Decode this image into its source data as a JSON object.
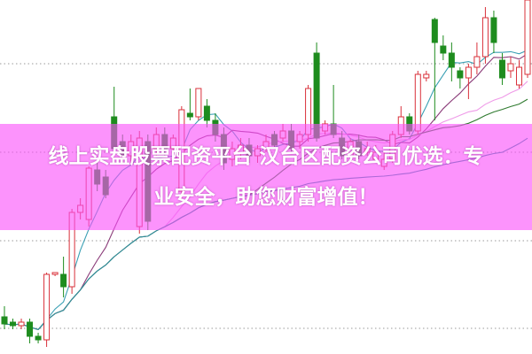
{
  "banner": {
    "line1": "线上实盘股票配资平台 汉台区配资公司优选：专",
    "line2": "业安全，助您财富增值！",
    "color": "#fa50fa"
  },
  "chart_data": {
    "type": "candlestick",
    "title": "",
    "grid": "dotted horizontal",
    "colors": {
      "up": "#d9303a",
      "down": "#1e8c1e",
      "ma": [
        "#3aa0b4",
        "#8a3a78",
        "#ef9be8",
        "#2f7a2f",
        "#2f8f9f"
      ]
    },
    "moving_average_periods": [
      5,
      10,
      20,
      30,
      60
    ],
    "ylim": [
      0,
      100
    ],
    "gridlines": [
      82,
      57,
      32,
      7.25
    ],
    "candles": [
      [
        10.5,
        8.5,
        13.5,
        7
      ],
      [
        9,
        8,
        10,
        7
      ],
      [
        8,
        9,
        10,
        7
      ],
      [
        9,
        5,
        10,
        3
      ],
      [
        5,
        4,
        6,
        3
      ],
      [
        4,
        22.5,
        23,
        2
      ],
      [
        22.5,
        23,
        23,
        22
      ],
      [
        22.5,
        19,
        27.5,
        16
      ],
      [
        19,
        40,
        41,
        17
      ],
      [
        40,
        42,
        44,
        38
      ],
      [
        38,
        52.5,
        53,
        36
      ],
      [
        52,
        48,
        55,
        46
      ],
      [
        50,
        45,
        52,
        44
      ],
      [
        67,
        58,
        75.5,
        56
      ],
      [
        60,
        56,
        62,
        54
      ],
      [
        56,
        60,
        62,
        54
      ],
      [
        36,
        61,
        63,
        34
      ],
      [
        60,
        37.5,
        62,
        35
      ],
      [
        58,
        62,
        64,
        56
      ],
      [
        62,
        58,
        64,
        56
      ],
      [
        58,
        61,
        62,
        55
      ],
      [
        46,
        69,
        70,
        44
      ],
      [
        68,
        67,
        75,
        66
      ],
      [
        67,
        75,
        75,
        66
      ],
      [
        70,
        66,
        72,
        64
      ],
      [
        66,
        62,
        68,
        60
      ],
      [
        62,
        54,
        64,
        52
      ],
      [
        55,
        58,
        60,
        53
      ],
      [
        57,
        59,
        61,
        55
      ],
      [
        59,
        56,
        61,
        54
      ],
      [
        56,
        58,
        59,
        54
      ],
      [
        58,
        60,
        62,
        57
      ],
      [
        62,
        59,
        63,
        58
      ],
      [
        61,
        63,
        65,
        60
      ],
      [
        63,
        58,
        65,
        57
      ],
      [
        60,
        62,
        63,
        58
      ],
      [
        62,
        75,
        76,
        60
      ],
      [
        85,
        61,
        88,
        60
      ],
      [
        63,
        65,
        66,
        62
      ],
      [
        65,
        62,
        76,
        61
      ],
      [
        61,
        56,
        63,
        55
      ],
      [
        56,
        60,
        61,
        55
      ],
      [
        60,
        56,
        62,
        55
      ],
      [
        57,
        58,
        60,
        56
      ],
      [
        55,
        57,
        59,
        54
      ],
      [
        53,
        55,
        57,
        52
      ],
      [
        55,
        62,
        63,
        54
      ],
      [
        62,
        67,
        70,
        61
      ],
      [
        67,
        63,
        68,
        62
      ],
      [
        63,
        79,
        80,
        62
      ],
      [
        78,
        79,
        80,
        77
      ],
      [
        94.5,
        88,
        95,
        66
      ],
      [
        87,
        85,
        90,
        83
      ],
      [
        85,
        81,
        88,
        77
      ],
      [
        80,
        78,
        81,
        75
      ],
      [
        78,
        81,
        82,
        72
      ],
      [
        81,
        84,
        88,
        79
      ],
      [
        84,
        95,
        98,
        82
      ],
      [
        95,
        88,
        97,
        85
      ],
      [
        83,
        78,
        85,
        76
      ],
      [
        80,
        82,
        84,
        78
      ],
      [
        76,
        81,
        83,
        75
      ],
      [
        79,
        100,
        100,
        78
      ]
    ]
  }
}
